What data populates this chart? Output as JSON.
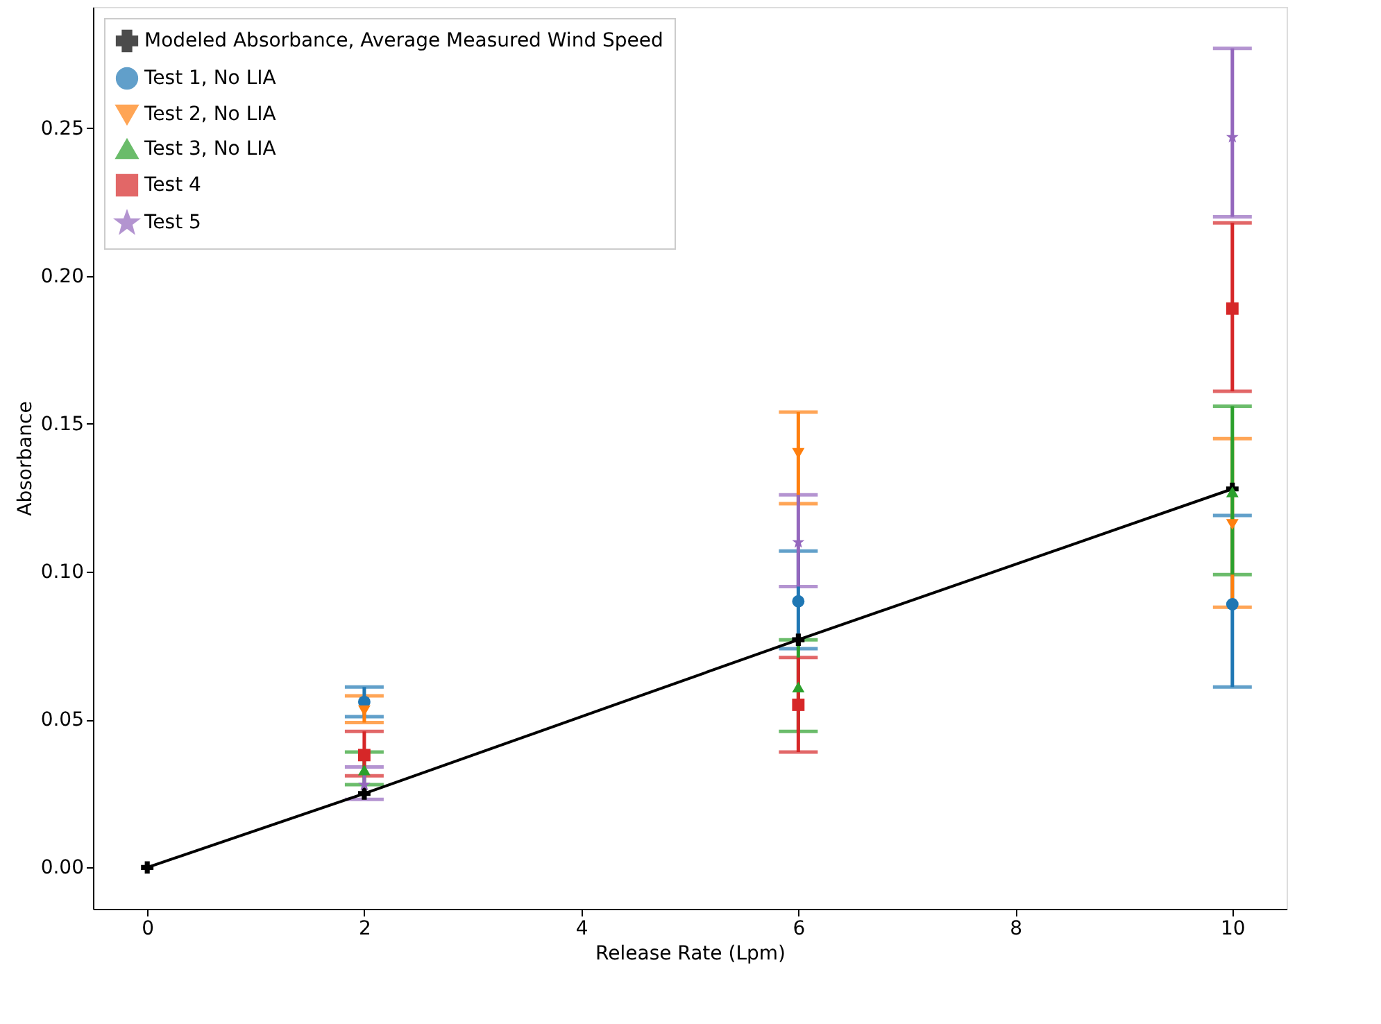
{
  "chart_data": {
    "type": "scatter",
    "xlabel": "Release Rate (Lpm)",
    "ylabel": "Absorbance",
    "xlim": [
      -0.5,
      10.5
    ],
    "ylim": [
      -0.014,
      0.291
    ],
    "xticks": [
      0,
      2,
      4,
      6,
      8,
      10
    ],
    "yticks": [
      {
        "value": 0,
        "label": "0.00"
      },
      {
        "value": 0.05,
        "label": "0.05"
      },
      {
        "value": 0.1,
        "label": "0.10"
      },
      {
        "value": 0.15,
        "label": "0.15"
      },
      {
        "value": 0.2,
        "label": "0.20"
      },
      {
        "value": 0.25,
        "label": "0.25"
      }
    ],
    "grid": false,
    "legend": "top left",
    "series": [
      {
        "name": "Modeled Absorbance, Average Measured Wind Speed",
        "type": "line",
        "marker": "cross",
        "color": "#000000",
        "x": [
          0,
          2,
          6,
          10
        ],
        "values": [
          0,
          0.025,
          0.077,
          0.128
        ]
      },
      {
        "name": "Test 1, No LIA",
        "marker": "circle",
        "color": "#1f77b4",
        "x": [
          2,
          6,
          10
        ],
        "values": [
          0.056,
          0.09,
          0.089
        ],
        "errors": [
          [
            0.051,
            0.061
          ],
          [
            0.074,
            0.107
          ],
          [
            0.061,
            0.119
          ]
        ]
      },
      {
        "name": "Test 2, No LIA",
        "marker": "triangle-down",
        "color": "#ff7f0e",
        "x": [
          2,
          6,
          10
        ],
        "values": [
          0.053,
          0.14,
          0.116
        ],
        "errors": [
          [
            0.049,
            0.058
          ],
          [
            0.123,
            0.154
          ],
          [
            0.088,
            0.145
          ]
        ]
      },
      {
        "name": "Test 3, No LIA",
        "marker": "triangle",
        "color": "#2ca02c",
        "x": [
          2,
          6,
          10
        ],
        "values": [
          0.033,
          0.061,
          0.127
        ],
        "errors": [
          [
            0.028,
            0.039
          ],
          [
            0.046,
            0.077
          ],
          [
            0.099,
            0.156
          ]
        ]
      },
      {
        "name": "Test 4",
        "marker": "square",
        "color": "#d62728",
        "x": [
          2,
          6,
          10
        ],
        "values": [
          0.038,
          0.055,
          0.189
        ],
        "errors": [
          [
            0.031,
            0.046
          ],
          [
            0.039,
            0.071
          ],
          [
            0.161,
            0.218
          ]
        ]
      },
      {
        "name": "Test 5",
        "marker": "star",
        "color": "#9467bd",
        "x": [
          2,
          6,
          10
        ],
        "values": [
          0.028,
          0.11,
          0.247
        ],
        "errors": [
          [
            0.023,
            0.034
          ],
          [
            0.095,
            0.126
          ],
          [
            0.22,
            0.277
          ]
        ]
      }
    ]
  }
}
